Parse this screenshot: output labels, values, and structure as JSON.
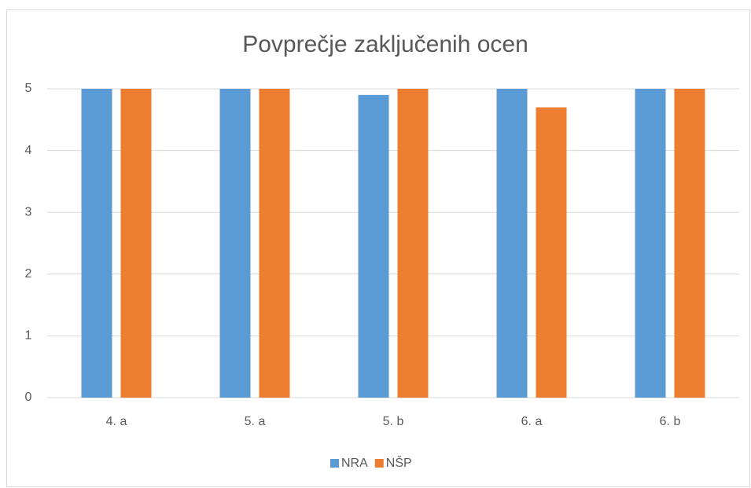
{
  "chart_data": {
    "type": "bar",
    "title": "Povprečje zaključenih ocen",
    "categories": [
      "4. a",
      "5. a",
      "5. b",
      "6. a",
      "6. b"
    ],
    "series": [
      {
        "name": "NRA",
        "color": "#5b9bd5",
        "values": [
          5,
          5,
          4.9,
          5,
          5
        ]
      },
      {
        "name": "NŠP",
        "color": "#ed7d31",
        "values": [
          5,
          5,
          5,
          4.7,
          5
        ]
      }
    ],
    "ylim": [
      0,
      5
    ],
    "yticks": [
      0,
      1,
      2,
      3,
      4,
      5
    ],
    "grid": true,
    "legend": "bottom"
  }
}
